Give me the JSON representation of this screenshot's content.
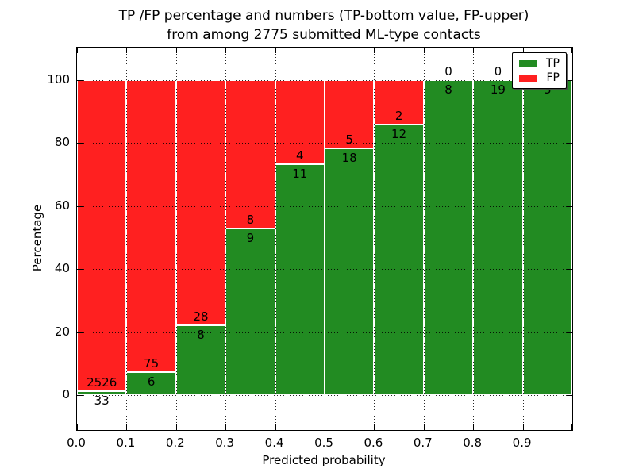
{
  "figure": {
    "title_line1": "TP /FP percentage and numbers (TP-bottom value, FP-upper)",
    "title_line2": "from among 2775 submitted ML-type contacts",
    "xlabel": "Predicted probability",
    "ylabel": "Percentage"
  },
  "legend": {
    "position": "upper right",
    "items": [
      {
        "label": "TP",
        "color": "#228b22"
      },
      {
        "label": "FP",
        "color": "#ff2020"
      }
    ]
  },
  "chart_data": {
    "type": "bar",
    "stacked": true,
    "title": "TP /FP percentage and numbers (TP-bottom value, FP-upper) from among 2775 submitted ML-type contacts",
    "xlabel": "Predicted probability",
    "ylabel": "Percentage",
    "total_submitted_contacts": 2775,
    "bin_edges": [
      0.0,
      0.1,
      0.2,
      0.3,
      0.4,
      0.5,
      0.6,
      0.7,
      0.8,
      0.9,
      1.0
    ],
    "x_tick_labels": [
      "0.0",
      "0.1",
      "0.2",
      "0.3",
      "0.4",
      "0.5",
      "0.6",
      "0.7",
      "0.8",
      "0.9"
    ],
    "y_tick_labels": [
      "0",
      "20",
      "40",
      "60",
      "80",
      "100"
    ],
    "y_tick_values": [
      0,
      20,
      40,
      60,
      80,
      100
    ],
    "ylim": [
      -11,
      110
    ],
    "xlim": [
      0.0,
      1.0
    ],
    "grid": true,
    "grid_style": "dotted",
    "legend_position": "upper right",
    "series": [
      {
        "name": "TP",
        "color": "#228b22",
        "counts": [
          33,
          6,
          8,
          9,
          11,
          18,
          12,
          8,
          19,
          3
        ]
      },
      {
        "name": "FP",
        "color": "#ff2020",
        "counts": [
          2526,
          75,
          28,
          8,
          4,
          5,
          2,
          0,
          0,
          0
        ]
      }
    ],
    "tp_percent": [
      1.29,
      7.41,
      22.22,
      52.94,
      73.33,
      78.26,
      85.71,
      100,
      100,
      100
    ]
  }
}
